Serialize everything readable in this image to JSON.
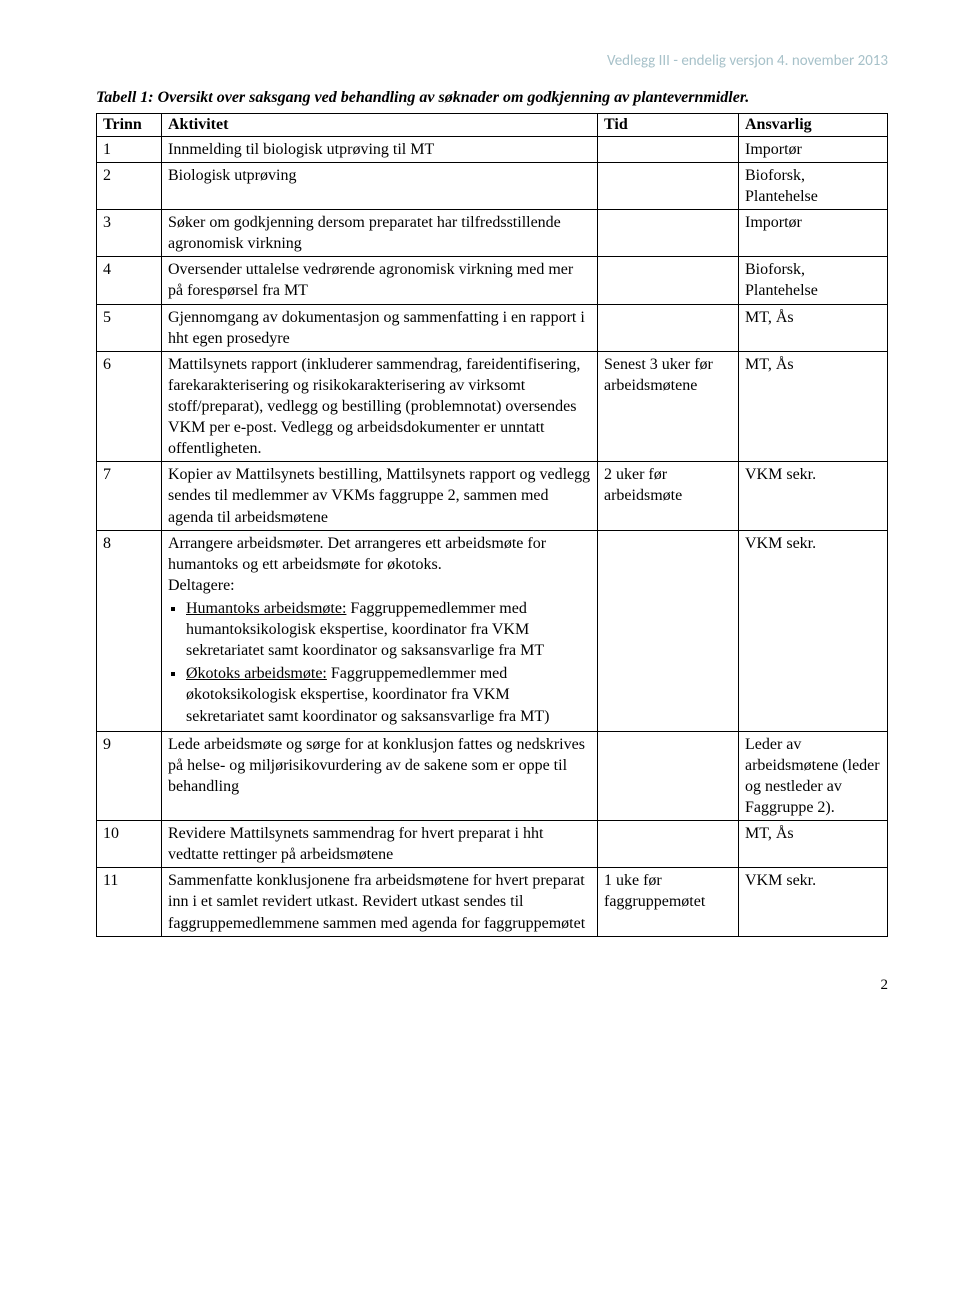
{
  "header_note": "Vedlegg III - endelig versjon 4. november 2013",
  "caption": "Tabell 1: Oversikt over saksgang ved behandling av søknader om godkjenning av plantevernmidler.",
  "columns": {
    "trinn": "Trinn",
    "aktivitet": "Aktivitet",
    "tid": "Tid",
    "ansvarlig": "Ansvarlig"
  },
  "rows": {
    "r1": {
      "trinn": "1",
      "akt": "Innmelding til biologisk utprøving til MT",
      "tid": "",
      "ansv": "Importør"
    },
    "r2": {
      "trinn": "2",
      "akt": "Biologisk utprøving",
      "tid": "",
      "ansv": "Bioforsk, Plantehelse"
    },
    "r3": {
      "trinn": "3",
      "akt": "Søker om godkjenning dersom preparatet har tilfredsstillende agronomisk virkning",
      "tid": "",
      "ansv": "Importør"
    },
    "r4": {
      "trinn": "4",
      "akt": "Oversender uttalelse vedrørende agronomisk virkning med mer på forespørsel fra MT",
      "tid": "",
      "ansv": "Bioforsk, Plantehelse"
    },
    "r5": {
      "trinn": "5",
      "akt": "Gjennomgang av dokumentasjon og sammenfatting i en rapport i hht egen prosedyre",
      "tid": "",
      "ansv": "MT, Ås"
    },
    "r6": {
      "trinn": "6",
      "akt": "Mattilsynets rapport (inkluderer sammendrag, fareidentifisering, farekarakterisering og risikokarakterisering av virksomt stoff/preparat), vedlegg og bestilling (problemnotat) oversendes VKM per e-post. Vedlegg og arbeidsdokumenter er unntatt offentligheten.",
      "tid": "Senest 3 uker før arbeidsmøtene",
      "ansv": "MT, Ås"
    },
    "r7": {
      "trinn": "7",
      "akt": "Kopier av Mattilsynets bestilling, Mattilsynets rapport og vedlegg sendes til medlemmer av VKMs faggruppe 2, sammen med agenda til arbeidsmøtene",
      "tid": "2 uker før arbeidsmøte",
      "ansv": "VKM sekr."
    },
    "r8": {
      "trinn": "8",
      "akt_intro": "Arrangere arbeidsmøter. Det arrangeres ett arbeidsmøte for humantoks og ett arbeidsmøte for økotoks.",
      "deltagere_label": "Deltagere:",
      "bullet1_u": "Humantoks arbeidsmøte:",
      "bullet1_rest": " Faggruppemedlemmer med humantoksikologisk ekspertise, koordinator fra VKM sekretariatet samt koordinator og saksansvarlige fra MT",
      "bullet2_u": "Økotoks arbeidsmøte:",
      "bullet2_rest": " Faggruppemedlemmer med økotoksikologisk ekspertise, koordinator fra VKM sekretariatet samt koordinator og saksansvarlige fra MT)",
      "tid": "",
      "ansv": "VKM sekr."
    },
    "r9": {
      "trinn": "9",
      "akt": "Lede arbeidsmøte og sørge for at konklusjon fattes og nedskrives på helse- og miljørisikovurdering av de sakene som er oppe til behandling",
      "tid": "",
      "ansv": "Leder av arbeidsmøtene (leder og nestleder av Faggruppe 2)."
    },
    "r10": {
      "trinn": "10",
      "akt": "Revidere Mattilsynets sammendrag for hvert preparat i hht vedtatte rettinger på arbeidsmøtene",
      "tid": "",
      "ansv": "MT, Ås"
    },
    "r11": {
      "trinn": "11",
      "akt": "Sammenfatte konklusjonene fra arbeidsmøtene for hvert preparat inn i et samlet revidert utkast. Revidert utkast sendes til faggruppemedlemmene sammen med agenda for faggruppemøtet",
      "tid": "1 uke før faggruppemøtet",
      "ansv": "VKM sekr."
    }
  },
  "page_number": "2"
}
